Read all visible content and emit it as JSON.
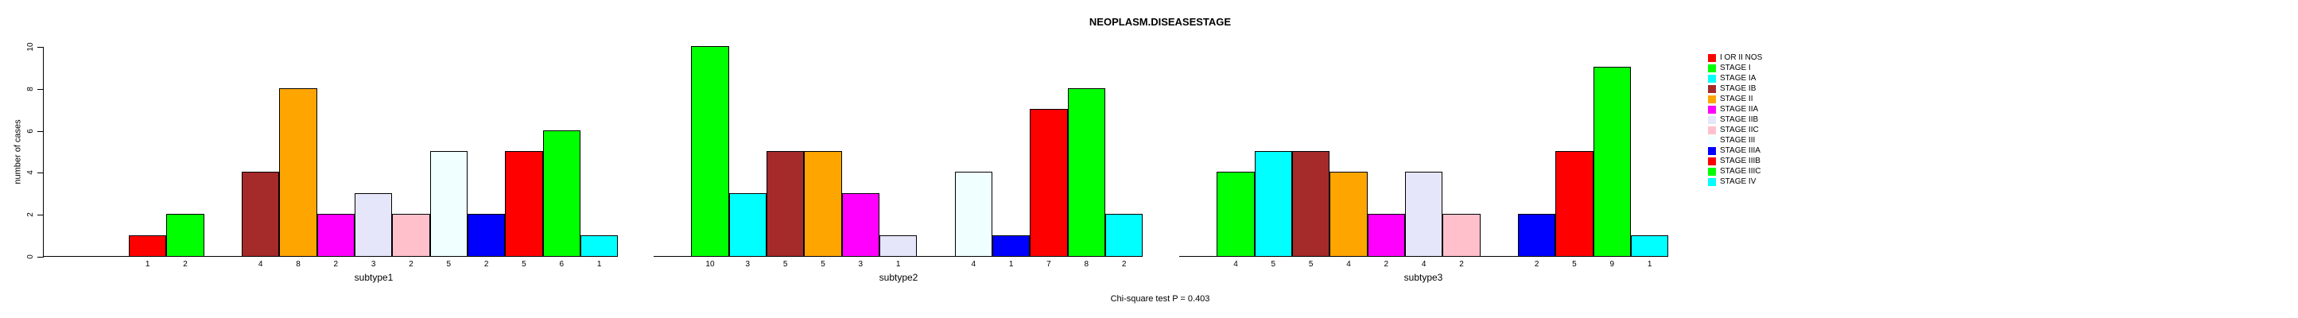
{
  "chart_data": {
    "type": "bar",
    "title": "NEOPLASM.DISEASESTAGE",
    "ylabel": "number of cases",
    "footnote": "Chi-square test P = 0.403",
    "ylim": [
      0,
      10
    ],
    "yticks": [
      0,
      2,
      4,
      6,
      8,
      10
    ],
    "grid": false,
    "legend_position": "right",
    "legend": [
      {
        "label": "I OR II NOS",
        "color": "#FF0000"
      },
      {
        "label": "STAGE I",
        "color": "#00FF00"
      },
      {
        "label": "STAGE IA",
        "color": "#00FFFF"
      },
      {
        "label": "STAGE IB",
        "color": "#A52A2A"
      },
      {
        "label": "STAGE II",
        "color": "#FFA500"
      },
      {
        "label": "STAGE IIA",
        "color": "#FF00FF"
      },
      {
        "label": "STAGE IIB",
        "color": "#E6E6FA"
      },
      {
        "label": "STAGE IIC",
        "color": "#FFC0CB"
      },
      {
        "label": "STAGE III",
        "color": "#F0FFFF"
      },
      {
        "label": "STAGE IIIA",
        "color": "#0000FF"
      },
      {
        "label": "STAGE IIIB",
        "color": "#FF0000"
      },
      {
        "label": "STAGE IIIC",
        "color": "#00FF00"
      },
      {
        "label": "STAGE IV",
        "color": "#00FFFF"
      }
    ],
    "panels": [
      {
        "xlabel": "subtype1",
        "slots": [
          {
            "stage": "I OR II NOS",
            "color": "#FF0000",
            "value": 1
          },
          {
            "stage": "STAGE I",
            "color": "#00FF00",
            "value": 2
          },
          {
            "stage": "STAGE IA",
            "color": "#00FFFF",
            "value": null
          },
          {
            "stage": "STAGE IB",
            "color": "#A52A2A",
            "value": 4
          },
          {
            "stage": "STAGE II",
            "color": "#FFA500",
            "value": 8
          },
          {
            "stage": "STAGE IIA",
            "color": "#FF00FF",
            "value": 2
          },
          {
            "stage": "STAGE IIB",
            "color": "#E6E6FA",
            "value": 3
          },
          {
            "stage": "STAGE IIC",
            "color": "#FFC0CB",
            "value": 2
          },
          {
            "stage": "STAGE III",
            "color": "#F0FFFF",
            "value": 5
          },
          {
            "stage": "STAGE IIIA",
            "color": "#0000FF",
            "value": 2
          },
          {
            "stage": "STAGE IIIB",
            "color": "#FF0000",
            "value": 5
          },
          {
            "stage": "STAGE IIIC",
            "color": "#00FF00",
            "value": 6
          },
          {
            "stage": "STAGE IV",
            "color": "#00FFFF",
            "value": 1
          }
        ]
      },
      {
        "xlabel": "subtype2",
        "slots": [
          {
            "stage": "I OR II NOS",
            "color": "#FF0000",
            "value": null
          },
          {
            "stage": "STAGE I",
            "color": "#00FF00",
            "value": 10
          },
          {
            "stage": "STAGE IA",
            "color": "#00FFFF",
            "value": 3
          },
          {
            "stage": "STAGE IB",
            "color": "#A52A2A",
            "value": 5
          },
          {
            "stage": "STAGE II",
            "color": "#FFA500",
            "value": 5
          },
          {
            "stage": "STAGE IIA",
            "color": "#FF00FF",
            "value": 3
          },
          {
            "stage": "STAGE IIB",
            "color": "#E6E6FA",
            "value": 1
          },
          {
            "stage": "STAGE IIC",
            "color": "#FFC0CB",
            "value": null
          },
          {
            "stage": "STAGE III",
            "color": "#F0FFFF",
            "value": 4
          },
          {
            "stage": "STAGE IIIA",
            "color": "#0000FF",
            "value": 1
          },
          {
            "stage": "STAGE IIIB",
            "color": "#FF0000",
            "value": 7
          },
          {
            "stage": "STAGE IIIC",
            "color": "#00FF00",
            "value": 8
          },
          {
            "stage": "STAGE IV",
            "color": "#00FFFF",
            "value": 2
          }
        ]
      },
      {
        "xlabel": "subtype3",
        "slots": [
          {
            "stage": "I OR II NOS",
            "color": "#FF0000",
            "value": null
          },
          {
            "stage": "STAGE I",
            "color": "#00FF00",
            "value": 4
          },
          {
            "stage": "STAGE IA",
            "color": "#00FFFF",
            "value": 5
          },
          {
            "stage": "STAGE IB",
            "color": "#A52A2A",
            "value": 5
          },
          {
            "stage": "STAGE II",
            "color": "#FFA500",
            "value": 4
          },
          {
            "stage": "STAGE IIA",
            "color": "#FF00FF",
            "value": 2
          },
          {
            "stage": "STAGE IIB",
            "color": "#E6E6FA",
            "value": 4
          },
          {
            "stage": "STAGE IIC",
            "color": "#FFC0CB",
            "value": 2
          },
          {
            "stage": "STAGE III",
            "color": "#F0FFFF",
            "value": null
          },
          {
            "stage": "STAGE IIIA",
            "color": "#0000FF",
            "value": 2
          },
          {
            "stage": "STAGE IIIB",
            "color": "#FF0000",
            "value": 5
          },
          {
            "stage": "STAGE IIIC",
            "color": "#00FF00",
            "value": 9
          },
          {
            "stage": "STAGE IV",
            "color": "#00FFFF",
            "value": 1
          }
        ]
      }
    ]
  }
}
